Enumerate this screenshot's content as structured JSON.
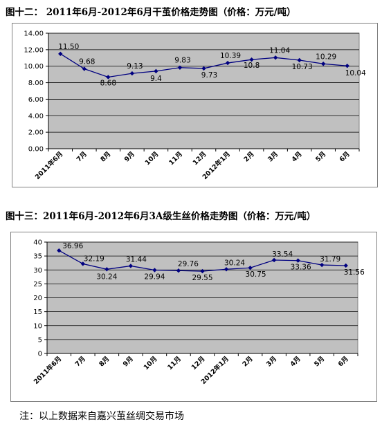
{
  "title1": "图十二： 2011年6月-2012年6月干茧价格走势图（价格：万元/吨）",
  "title2": "图十三：2011年6月-2012年6月3A级生丝价格走势图（价格：万元/吨）",
  "note": "注：以上数据来自嘉兴茧丝绸交易市场",
  "colors": {
    "plot_bg": "#c0c0c0",
    "line": "#000080",
    "grid": "#000000",
    "frame": "#7f7f7f"
  },
  "chart_data": [
    {
      "type": "line",
      "title": "图十二： 2011年6月-2012年6月干茧价格走势图（价格：万元/吨）",
      "categories": [
        "2011年6月",
        "7月",
        "8月",
        "9月",
        "10月",
        "11月",
        "12月",
        "2012年1月",
        "2月",
        "3月",
        "4月",
        "5月",
        "6月"
      ],
      "series": [
        {
          "values": [
            11.5,
            9.68,
            8.68,
            9.13,
            9.4,
            9.83,
            9.73,
            10.39,
            10.8,
            11.04,
            10.73,
            10.29,
            10.04
          ]
        }
      ],
      "data_labels": [
        "11.50",
        "9.68",
        "8.68",
        "9.13",
        "9.4",
        "9.83",
        "9.73",
        "10.39",
        "10.8",
        "11.04",
        "10.73",
        "10.29",
        "10.04"
      ],
      "yticks": [
        "0.00",
        "2.00",
        "4.00",
        "6.00",
        "8.00",
        "10.00",
        "12.00",
        "14.00"
      ],
      "ylim": [
        0,
        14
      ],
      "grid": true,
      "legend": "none"
    },
    {
      "type": "line",
      "title": "图十三：2011年6月-2012年6月3A级生丝价格走势图（价格：万元/吨）",
      "categories": [
        "2011年6月",
        "7月",
        "8月",
        "9月",
        "10月",
        "11月",
        "12月",
        "2012年1月",
        "2月",
        "3月",
        "4月",
        "5月",
        "6月"
      ],
      "series": [
        {
          "values": [
            36.96,
            32.19,
            30.24,
            31.44,
            29.94,
            29.76,
            29.55,
            30.24,
            30.75,
            33.54,
            33.36,
            31.79,
            31.56
          ]
        }
      ],
      "data_labels": [
        "36.96",
        "32.19",
        "30.24",
        "31.44",
        "29.94",
        "29.76",
        "29.55",
        "30.24",
        "30.75",
        "33.54",
        "33.36",
        "31.79",
        "31.56"
      ],
      "yticks": [
        "0",
        "5",
        "10",
        "15",
        "20",
        "25",
        "30",
        "35",
        "40"
      ],
      "ylim": [
        0,
        40
      ],
      "grid": true,
      "legend": "none"
    }
  ]
}
